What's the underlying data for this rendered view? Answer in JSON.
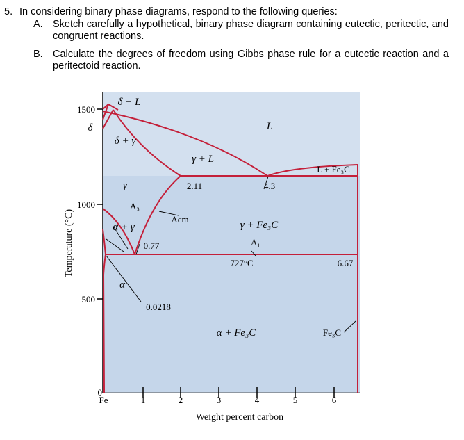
{
  "question": {
    "number": "5.",
    "stem": "In considering binary phase diagrams, respond to the following queries:",
    "items": [
      {
        "letter": "A.",
        "text": "Sketch carefully a hypothetical, binary phase diagram containing eutectic, peritectic, and congruent reactions."
      },
      {
        "letter": "B.",
        "text": "Calculate the degrees of freedom using Gibbs phase rule for a eutectic reaction and a peritectoid reaction."
      }
    ]
  },
  "figure": {
    "y_axis_label": "Temperature (°C)",
    "x_axis_label": "Weight percent carbon",
    "x_ticks": [
      "Fe",
      "1",
      "2",
      "3",
      "4",
      "5",
      "6"
    ],
    "y_ticks": [
      "1500",
      "1000",
      "500",
      "0"
    ],
    "regions": {
      "delta_L": "δ + L",
      "delta": "δ",
      "delta_gamma": "δ + γ",
      "L": "L",
      "gamma_L": "γ + L",
      "L_Fe3C": "L + Fe₃C",
      "gamma": "γ",
      "alpha_gamma": "α + γ",
      "alpha": "α",
      "gamma_Fe3C": "γ + Fe₃C",
      "alpha_Fe3C": "α + Fe₃C",
      "Fe3C": "Fe₃C"
    },
    "annotations": {
      "c_211": "2.11",
      "c_43": "4.3",
      "c_077": "0.77",
      "c_667": "6.67",
      "c_00218": "0.0218",
      "t_727": "727°C",
      "A3": "A₃",
      "Acm": "Acm",
      "A1": "A₁"
    },
    "colors": {
      "background": "#c5d6ea",
      "line": "#c4203a"
    }
  }
}
